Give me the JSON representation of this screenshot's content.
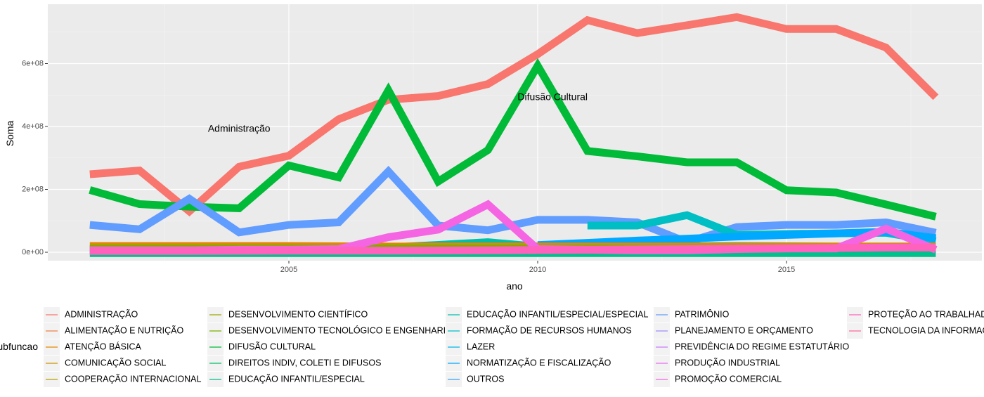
{
  "chart_data": {
    "type": "line",
    "xlabel": "ano",
    "ylabel": "Soma",
    "xlim": [
      2000.4,
      2018.6
    ],
    "ylim": [
      -30000000,
      790000000
    ],
    "x_ticks": [
      2005,
      2010,
      2015
    ],
    "x_tick_labels": [
      "2005",
      "2010",
      "2015"
    ],
    "y_ticks": [
      0,
      200000000,
      400000000,
      600000000
    ],
    "y_tick_labels": [
      "0e+00",
      "2e+08",
      "4e+08",
      "6e+08"
    ],
    "grid": true,
    "legend": {
      "title": "subfuncao",
      "position": "bottom",
      "columns": 5,
      "entries": [
        {
          "label": "ADMINISTRAÇÃO",
          "color": "#F8766D"
        },
        {
          "label": "ALIMENTAÇÃO E NUTRIÇÃO",
          "color": "#EF7F49"
        },
        {
          "label": "ATENÇÃO BÁSICA",
          "color": "#E58700"
        },
        {
          "label": "COMUNICAÇÃO SOCIAL",
          "color": "#CC9600"
        },
        {
          "label": "COOPERAÇÃO INTERNACIONAL",
          "color": "#B79F00"
        },
        {
          "label": "DESENVOLVIMENTO CIENTÍFICO",
          "color": "#9DA700"
        },
        {
          "label": "DESENVOLVIMENTO TECNOLÓGICO E ENGENHARIA",
          "color": "#7CAE00"
        },
        {
          "label": "DIFUSÃO CULTURAL",
          "color": "#00BA38"
        },
        {
          "label": "DIREITOS INDIV, COLETI E DIFUSOS",
          "color": "#00BE67"
        },
        {
          "label": "EDUCAÇÃO INFANTIL/ESPECIAL",
          "color": "#00C08B"
        },
        {
          "label": "EDUCAÇÃO INFANTIL/ESPECIAL/ESPECIAL",
          "color": "#00BFAA"
        },
        {
          "label": "FORMAÇÃO DE RECURSOS HUMANOS",
          "color": "#00BFC4"
        },
        {
          "label": "LAZER",
          "color": "#00B6EB"
        },
        {
          "label": "NORMATIZAÇÃO E FISCALIZAÇÃO",
          "color": "#00A9FF"
        },
        {
          "label": "OUTROS",
          "color": "#35A2FF"
        },
        {
          "label": "PATRIMÔNIO",
          "color": "#619CFF"
        },
        {
          "label": "PLANEJAMENTO E ORÇAMENTO",
          "color": "#9F8CFF"
        },
        {
          "label": "PREVIDÊNCIA DO REGIME ESTATUTÁRIO",
          "color": "#C77CFF"
        },
        {
          "label": "PRODUÇÃO INDUSTRIAL",
          "color": "#E76BF3"
        },
        {
          "label": "PROMOÇÃO COMERCIAL",
          "color": "#F564E3"
        },
        {
          "label": "PROTEÇÃO AO TRABALHADOR",
          "color": "#FF62BC"
        },
        {
          "label": "TECNOLOGIA DA INFORMAÇÃO",
          "color": "#FF6A98"
        }
      ]
    },
    "annotations": [
      {
        "text": "Administração",
        "x": 2004.0,
        "y": 392000000
      },
      {
        "text": "Difusão Cultural",
        "x": 2010.3,
        "y": 492000000
      }
    ],
    "series": [
      {
        "color": "#F8766D",
        "x": [
          2001,
          2002,
          2003,
          2004,
          2005,
          2006,
          2007,
          2008,
          2009,
          2010,
          2011,
          2012,
          2013,
          2014,
          2015,
          2016,
          2017,
          2018
        ],
        "values": [
          248000000,
          260000000,
          130000000,
          272000000,
          307000000,
          423000000,
          485000000,
          497000000,
          535000000,
          630000000,
          738000000,
          697000000,
          722000000,
          748000000,
          710000000,
          710000000,
          651000000,
          493000000
        ]
      },
      {
        "color": "#00BA38",
        "x": [
          2001,
          2002,
          2003,
          2004,
          2005,
          2006,
          2007,
          2008,
          2009,
          2010,
          2011,
          2012,
          2013,
          2014,
          2015,
          2016,
          2017,
          2018
        ],
        "values": [
          198000000,
          153000000,
          145000000,
          140000000,
          276000000,
          238000000,
          515000000,
          225000000,
          325000000,
          593000000,
          322000000,
          305000000,
          286000000,
          286000000,
          197000000,
          190000000,
          152000000,
          113000000
        ]
      },
      {
        "color": "#619CFF",
        "x": [
          2001,
          2002,
          2003,
          2004,
          2005,
          2006,
          2007,
          2008,
          2009,
          2010,
          2011,
          2012,
          2013,
          2014,
          2015,
          2016,
          2017,
          2018
        ],
        "values": [
          87000000,
          73000000,
          170000000,
          63000000,
          87000000,
          95000000,
          257000000,
          85000000,
          70000000,
          103000000,
          103000000,
          95000000,
          32000000,
          80000000,
          87000000,
          87000000,
          95000000,
          62000000
        ]
      },
      {
        "color": "#00BFC4",
        "x": [
          2011,
          2012,
          2013,
          2014,
          2015,
          2016,
          2017,
          2018
        ],
        "values": [
          85000000,
          85000000,
          118000000,
          55000000,
          58000000,
          60000000,
          62000000,
          35000000
        ]
      },
      {
        "color": "#00A9FF",
        "x": [
          2010,
          2011,
          2012,
          2013,
          2014,
          2015,
          2016,
          2017,
          2018
        ],
        "values": [
          23000000,
          30000000,
          37000000,
          43000000,
          50000000,
          55000000,
          60000000,
          65000000,
          45000000
        ]
      },
      {
        "color": "#00BFAA",
        "x": [
          2001,
          2003,
          2005,
          2007,
          2009,
          2010,
          2012,
          2014,
          2016,
          2018
        ],
        "values": [
          8000000,
          9000000,
          12000000,
          15000000,
          32000000,
          18000000,
          18000000,
          20000000,
          18000000,
          18000000
        ]
      },
      {
        "color": "#E58700",
        "x": [
          2001,
          2003,
          2005,
          2007,
          2009,
          2011,
          2013,
          2015,
          2017,
          2018
        ],
        "values": [
          20000000,
          20000000,
          20000000,
          18000000,
          18000000,
          18000000,
          18000000,
          18000000,
          18000000,
          18000000
        ]
      },
      {
        "color": "#7CAE00",
        "x": [
          2001,
          2004,
          2007,
          2010,
          2013,
          2016,
          2018
        ],
        "values": [
          12000000,
          12000000,
          12000000,
          12000000,
          12000000,
          12000000,
          12000000
        ]
      },
      {
        "color": "#00C08B",
        "x": [
          2001,
          2004,
          2007,
          2010,
          2013,
          2016,
          2018
        ],
        "values": [
          -3000000,
          -3000000,
          -3000000,
          -3000000,
          -3000000,
          -3000000,
          -3000000
        ]
      },
      {
        "color": "#F564E3",
        "x": [
          2001,
          2002,
          2003,
          2004,
          2005,
          2006,
          2007,
          2008,
          2009,
          2010,
          2011,
          2012,
          2013,
          2014,
          2015,
          2016,
          2017,
          2018
        ],
        "values": [
          6000000,
          6000000,
          6000000,
          8000000,
          8000000,
          10000000,
          48000000,
          72000000,
          152000000,
          10000000,
          8000000,
          6000000,
          6000000,
          10000000,
          12000000,
          12000000,
          75000000,
          8000000
        ]
      },
      {
        "color": "#FF62BC",
        "x": [
          2001,
          2003,
          2005,
          2007,
          2009,
          2011,
          2013,
          2015,
          2017,
          2018
        ],
        "values": [
          4000000,
          4000000,
          5000000,
          5000000,
          6000000,
          8000000,
          10000000,
          12000000,
          15000000,
          15000000
        ]
      }
    ]
  }
}
